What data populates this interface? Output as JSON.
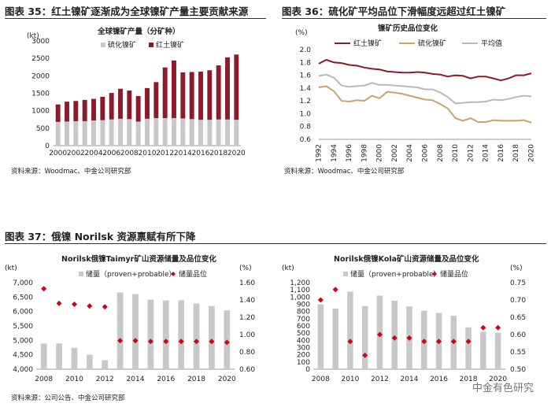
{
  "colors": {
    "sulfide": "#c8c8c8",
    "laterite": "#8b1a2b",
    "reserves": "#c8c8c8",
    "grade": "#d0021b",
    "avg": "#b8b8b8",
    "sulfide_line": "#c9a36e"
  },
  "fig35": {
    "title": "图表 35：红土镍矿逐渐成为全球镍矿产量主要贡献来源",
    "source": "资料来源：Woodmac、中金公司研究部"
  },
  "fig36": {
    "title": "图表 36：硫化矿平均品位下滑幅度远超过红土镍矿",
    "source": "资料来源：Woodmac、中金公司研究部"
  },
  "fig37": {
    "title": "图表 37：俄镍 Norilsk 资源禀赋有所下降",
    "source": "资料来源：公司公告、中金公司研究部"
  },
  "watermark": "中金有色研究",
  "chart_data": [
    {
      "type": "bar",
      "stacked": true,
      "title": "全球镍矿产量（分矿种）",
      "ylabel": "(kt)",
      "ylim": [
        0,
        3000
      ],
      "yticks": [
        0,
        500,
        1000,
        1500,
        2000,
        2500,
        3000
      ],
      "categories": [
        "2000",
        "2001",
        "2002",
        "2003",
        "2004",
        "2005",
        "2006",
        "2007",
        "2008",
        "2009",
        "2010",
        "2011",
        "2012",
        "2013",
        "2014",
        "2015",
        "2016",
        "2017",
        "2018",
        "2019",
        "2020"
      ],
      "xtick_labels": [
        "2000",
        "2002",
        "2004",
        "2006",
        "2008",
        "2010",
        "2012",
        "2014",
        "2016",
        "2018",
        "2020"
      ],
      "series": [
        {
          "name": "硫化镍矿",
          "values": [
            680,
            690,
            700,
            700,
            720,
            730,
            750,
            770,
            760,
            690,
            770,
            790,
            790,
            790,
            780,
            760,
            740,
            740,
            750,
            750,
            740
          ]
        },
        {
          "name": "红土镍矿",
          "values": [
            500,
            570,
            580,
            610,
            620,
            670,
            760,
            860,
            820,
            730,
            880,
            1030,
            1450,
            1650,
            1320,
            1350,
            1380,
            1420,
            1550,
            1780,
            1870
          ]
        }
      ]
    },
    {
      "type": "line",
      "title": "镍矿历史品位变化",
      "ylabel": "(%)",
      "ylim": [
        0.6,
        2.0
      ],
      "yticks": [
        "0.6",
        "0.8",
        "1.0",
        "1.2",
        "1.4",
        "1.6",
        "1.8",
        "2.0"
      ],
      "x": [
        1992,
        1993,
        1994,
        1995,
        1996,
        1997,
        1998,
        1999,
        2000,
        2001,
        2002,
        2003,
        2004,
        2005,
        2006,
        2007,
        2008,
        2009,
        2010,
        2011,
        2012,
        2013,
        2014,
        2015,
        2016,
        2017,
        2018,
        2019,
        2020
      ],
      "xtick_labels": [
        "1992",
        "1994",
        "1996",
        "1998",
        "2000",
        "2002",
        "2004",
        "2006",
        "2008",
        "2010",
        "2012",
        "2014",
        "2016",
        "2018",
        "2020"
      ],
      "series": [
        {
          "name": "红土镍矿",
          "values": [
            1.78,
            1.84,
            1.8,
            1.79,
            1.76,
            1.75,
            1.72,
            1.7,
            1.69,
            1.66,
            1.65,
            1.64,
            1.64,
            1.65,
            1.64,
            1.62,
            1.61,
            1.58,
            1.6,
            1.59,
            1.55,
            1.58,
            1.58,
            1.55,
            1.52,
            1.55,
            1.6,
            1.6,
            1.63
          ]
        },
        {
          "name": "硫化镍矿",
          "values": [
            1.41,
            1.43,
            1.35,
            1.2,
            1.19,
            1.21,
            1.2,
            1.28,
            1.24,
            1.34,
            1.33,
            1.31,
            1.28,
            1.25,
            1.22,
            1.21,
            1.15,
            1.08,
            0.93,
            0.89,
            0.93,
            0.87,
            0.87,
            0.9,
            0.89,
            0.89,
            0.89,
            0.9,
            0.86
          ]
        },
        {
          "name": "平均值",
          "values": [
            1.59,
            1.61,
            1.56,
            1.44,
            1.42,
            1.43,
            1.44,
            1.48,
            1.45,
            1.45,
            1.44,
            1.43,
            1.42,
            1.41,
            1.38,
            1.38,
            1.33,
            1.26,
            1.16,
            1.17,
            1.18,
            1.18,
            1.19,
            1.22,
            1.21,
            1.23,
            1.26,
            1.28,
            1.27
          ]
        }
      ]
    },
    {
      "type": "bar+scatter",
      "title": "Norilsk俄镍Taimyr矿山资源储量及品位变化",
      "ylabel": "(kt)",
      "ylim": [
        4000,
        7000
      ],
      "yticks": [
        "4,000",
        "4,500",
        "5,000",
        "5,500",
        "6,000",
        "6,500",
        "7,000"
      ],
      "y2label": "(%)",
      "y2lim": [
        0.6,
        1.6
      ],
      "y2ticks": [
        "0.60",
        "0.80",
        "1.00",
        "1.20",
        "1.40",
        "1.60"
      ],
      "categories": [
        "2008",
        "2009",
        "2010",
        "2011",
        "2012",
        "2013",
        "2014",
        "2015",
        "2016",
        "2017",
        "2018",
        "2019",
        "2020"
      ],
      "xtick_labels": [
        "2008",
        "2010",
        "2012",
        "2014",
        "2016",
        "2018",
        "2020"
      ],
      "series": [
        {
          "name": "储量（proven+probable）",
          "values": [
            4890,
            4890,
            4740,
            4500,
            4310,
            6660,
            6600,
            6410,
            6380,
            6390,
            6280,
            6190,
            6040
          ]
        },
        {
          "name": "储量品位",
          "values": [
            1.53,
            1.36,
            1.35,
            1.33,
            1.32,
            0.93,
            0.93,
            0.92,
            0.92,
            0.92,
            0.92,
            0.92,
            0.91
          ]
        }
      ]
    },
    {
      "type": "bar+scatter",
      "title": "Norilsk俄镍Kola矿山资源储量及品位变化",
      "ylabel": "(kt)",
      "ylim": [
        0,
        1200
      ],
      "yticks": [
        "0",
        "100",
        "200",
        "300",
        "400",
        "500",
        "600",
        "700",
        "800",
        "900",
        "1,000",
        "1,100",
        "1,200"
      ],
      "y2label": "(%)",
      "y2lim": [
        0.5,
        0.75
      ],
      "y2ticks": [
        "0.50",
        "0.55",
        "0.60",
        "0.65",
        "0.70",
        "0.75"
      ],
      "categories": [
        "2008",
        "2009",
        "2010",
        "2011",
        "2012",
        "2013",
        "2014",
        "2015",
        "2016",
        "2017",
        "2018",
        "2019",
        "2020"
      ],
      "xtick_labels": [
        "2008",
        "2010",
        "2012",
        "2014",
        "2016",
        "2018",
        "2020"
      ],
      "series": [
        {
          "name": "储量（proven+probable）",
          "values": [
            900,
            840,
            1075,
            875,
            1020,
            950,
            870,
            810,
            780,
            740,
            580,
            520,
            505
          ]
        },
        {
          "name": "储量品位",
          "values": [
            0.7,
            0.73,
            0.58,
            0.54,
            0.6,
            0.59,
            0.59,
            0.58,
            0.58,
            0.58,
            0.58,
            0.62,
            0.62
          ]
        }
      ]
    }
  ]
}
